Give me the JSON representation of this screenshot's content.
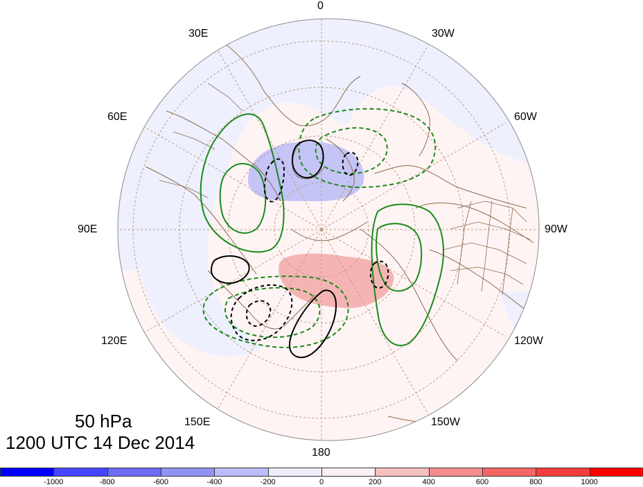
{
  "map": {
    "projection": "north-polar-stereographic",
    "field_shading": "anomaly (filled)",
    "contours": {
      "green_solid": "positive anomaly",
      "green_dashed": "negative anomaly",
      "black_solid": "positive anomaly",
      "black_dashed": "negative anomaly"
    },
    "colors": {
      "map_bg": "#fff4f4",
      "blue_fill": "#c9c9f7",
      "light_blue_fill": "#eef0fd",
      "red_fill": "#f6b7b7",
      "coast": "#8b6b4e",
      "graticule": "#b99b7e",
      "green": "#1a8a1a",
      "black": "#000000"
    }
  },
  "longitude_labels": {
    "lon_0": "0",
    "lon_30w": "30W",
    "lon_30e": "30E",
    "lon_60e": "60E",
    "lon_60w": "60W",
    "lon_90e": "90E",
    "lon_90w": "90W",
    "lon_120e": "120E",
    "lon_120w": "120W",
    "lon_150e": "150E",
    "lon_150w": "150W",
    "lon_180": "180"
  },
  "title": {
    "level": "50 hPa",
    "valid_time": "1200 UTC 14 Dec 2014"
  },
  "colorbar": {
    "colors": [
      "#0000ff",
      "#4545ff",
      "#6c6cf5",
      "#9292f5",
      "#bcbcfa",
      "#ededfd",
      "#fff1f1",
      "#f8c0c0",
      "#f48e8e",
      "#f46666",
      "#f43c3c",
      "#f80000"
    ],
    "ticks": [
      "-1000",
      "-800",
      "-600",
      "-400",
      "-200",
      "0",
      "200",
      "400",
      "600",
      "800",
      "1000"
    ]
  }
}
